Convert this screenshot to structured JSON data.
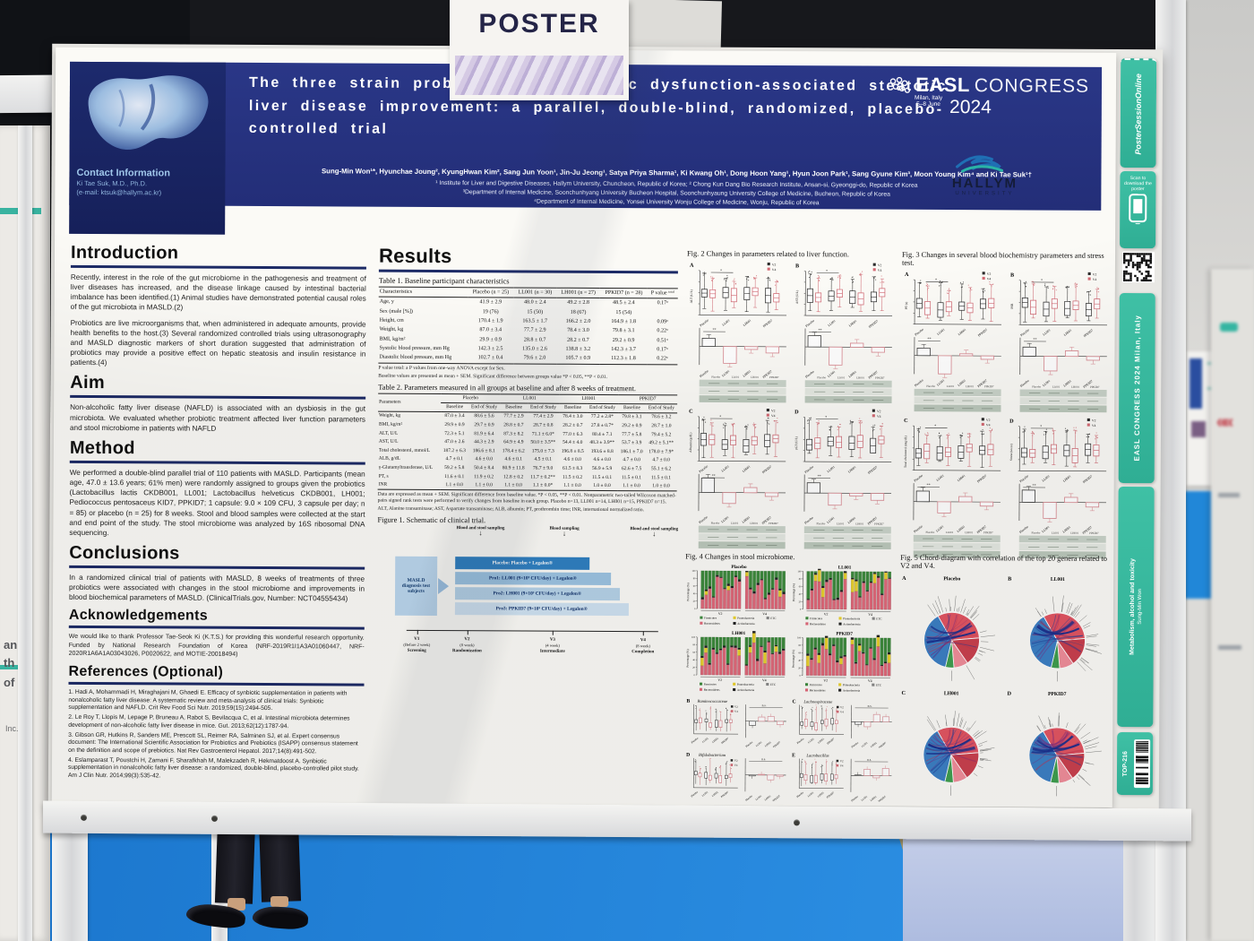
{
  "scene": {
    "poster_sign_label": "POSTER",
    "neighbor_fragments": [
      "an",
      "th",
      "of",
      "Inc."
    ]
  },
  "strip": {
    "pso": "PosterSessionOnline",
    "scan": "Scan to download the poster",
    "congress_vertical": "EASL CONGRESS 2024  Milan, Italy",
    "category": "Metabolism, alcohol and toxicity",
    "presenter": "Sung-Min Won",
    "tag": "TOP-216"
  },
  "poster": {
    "header": {
      "title": "The three strain probiotics for metabolic dysfunction-associated steatotic liver disease improvement: a parallel, double-blind, randomized, placebo-controlled trial",
      "authors": "Sung-Min Won¹*, Hyunchae Joung², KyungHwan Kim², Sang Jun Yoon¹, Jin-Ju Jeong¹, Satya Priya Sharma¹, Ki Kwang Oh¹, Dong Hoon Yang¹, Hyun Joon Park¹, Sang Gyune Kim³, Moon Young Kim⁴ and Ki Tae Suk¹†",
      "affil1": "¹ Institute for Liver and Digestive Diseases, Hallym University, Chuncheon, Republic of Korea; ² Chong Kun Dang Bio Research Institute, Ansan-si, Gyeonggi-do, Republic of Korea",
      "affil2": "³Department of Internal Medicine, Soonchunhyang University Bucheon Hospital, Soonchunhyaung University College of Medicine, Bucheon, Republic of Korea",
      "affil3": "⁴Department of Internal Medicine, Yonsei University Wonju College of Medicine, Wonju, Republic of Korea",
      "congress": {
        "name": "EASL",
        "word": "CONGRESS",
        "year": "2024",
        "city": "Milan, Italy",
        "dates": "5–8 June"
      },
      "university": {
        "line1": "HALLYM",
        "line2": "UNIVERSITY"
      },
      "contact": {
        "heading": "Contact Information",
        "name": "Ki Tae Suk, M.D., Ph.D.",
        "email": "(e-mail: ktsuk@hallym.ac.kr)"
      }
    },
    "sections": {
      "intro": {
        "heading": "Introduction",
        "p1": "Recently, interest in the role of the gut microbiome in the pathogenesis and treatment of liver diseases has increased, and the disease linkage caused by intestinal bacterial imbalance has been identified.(1) Animal studies have demonstrated potential causal roles of the gut microbiota in MASLD.(2)",
        "p2": "Probiotics are live microorganisms that, when administered in adequate amounts, provide health benefits to the host.(3) Several randomized controlled trials using ultrasonography and MASLD diagnostic markers of short duration suggested that administration of probiotics may provide a positive effect on hepatic steatosis and insulin resistance in patients.(4)"
      },
      "aim": {
        "heading": "Aim",
        "text": "Non-alcoholic fatty liver disease (NAFLD) is associated with an dysbiosis in the gut microbiota. We evaluated whether probiotic treatment affected liver function parameters and stool microbiome in patients with NAFLD"
      },
      "method": {
        "heading": "Method",
        "text": "We performed a double-blind parallel trial of 110 patients with MASLD. Participants (mean age, 47.0 ± 13.6 years; 61% men) were randomly assigned to groups given the probiotics (Lactobacillus lactis CKDB001, LL001; Lactobacillus helveticus CKDB001, LH001; Pediococcus pentosaceus KID7, PPKID7; 1 capsule: 9.0 × 109 CFU, 3 capsule per day; n = 85) or placebo (n = 25) for 8 weeks. Stool and blood samples were collected at the start and end point of the study. The stool microbiome was analyzed by 16S ribosomal DNA sequencing."
      },
      "conclusions": {
        "heading": "Conclusions",
        "text": "In a randomized clinical trial of patients with MASLD, 8 weeks of treatments of three probiotics were associated with changes in the stool microbiome and improvements in blood biochemical parameters of MASLD. (ClinicalTrials.gov, Number: NCT04555434)"
      },
      "ack": {
        "heading": "Acknowledgements",
        "text": "We would like to thank Professor Tae-Seok Ki (K.T.S.) for providing this wonderful research opportunity. Funded by National Research Foundation of Korea (NRF-2019R1I1A3A01060447, NRF-2020R1A6A1A03043026, P0020622, and MOTIE-20018494)"
      },
      "refs": {
        "heading": "References (Optional)",
        "items": [
          "1.  Hadi A, Mohammadi H, Miraghajani M, Ghaedi E. Efficacy of synbiotic supplementation in patients with nonalcoholic fatty liver disease: A systematic review and meta-analysis of clinical trials: Synbiotic supplementation and NAFLD. Crit Rev Food Sci Nutr. 2019;59(15):2494-505.",
          "2.  Le Roy T, Llopis M, Lepage P, Bruneau A, Rabot S, Bevilacqua C, et al. Intestinal microbiota determines development of non-alcoholic fatty liver disease in mice. Gut. 2013;62(12):1787-94.",
          "3.  Gibson GR, Hutkins R, Sanders ME, Prescott SL, Reimer RA, Salminen SJ, et al. Expert consensus document: The International Scientific Association for Probiotics and Prebiotics (ISAPP) consensus statement on the definition and scope of prebiotics. Nat Rev Gastroenterol Hepatol. 2017;14(8):491-502.",
          "4.  Eslamparast T, Poustchi H, Zamani F, Sharafkhah M, Malekzadeh R, Hekmatdoost A. Synbiotic supplementation in nonalcoholic fatty liver disease: a randomized, double-blind, placebo-controlled pilot study. Am J Clin Nutr. 2014;99(3):535-42."
        ]
      }
    },
    "results": {
      "heading": "Results",
      "table1": {
        "caption": "Table 1. Baseline participant characteristics",
        "columns": [
          "Characteristics",
          "Placebo (n = 25)",
          "LL001 (n = 30)",
          "LH001 (n = 27)",
          "PPKID7 (n = 28)",
          "P value ᵗᵒᵗᵃˡ"
        ],
        "rows": [
          [
            "Age, y",
            "41.9 ± 2.9",
            "48.0 ± 2.4",
            "49.2 ± 2.8",
            "48.5 ± 2.4",
            "0.17ᵃ"
          ],
          [
            "Sex (male [%])",
            "19 (76)",
            "15 (50)",
            "18 (67)",
            "15 (54)",
            ""
          ],
          [
            "Height, cm",
            "170.4 ± 1.9",
            "163.5 ± 1.7",
            "166.2 ± 2.0",
            "164.9 ± 1.8",
            "0.09ᵃ"
          ],
          [
            "Weight, kg",
            "87.0 ± 3.4",
            "77.7 ± 2.9",
            "78.4 ± 3.0",
            "79.8 ± 3.1",
            "0.22ᵃ"
          ],
          [
            "BMI, kg/m²",
            "29.9 ± 0.9",
            "28.8 ± 0.7",
            "28.2 ± 0.7",
            "29.2 ± 0.9",
            "0.51ᵃ"
          ],
          [
            "Systolic blood pressure, mm Hg",
            "142.3 ± 2.5",
            "135.0 ± 2.6",
            "138.8 ± 3.2",
            "142.3 ± 3.7",
            "0.17ᵃ"
          ],
          [
            "Diastolic blood pressure, mm Hg",
            "102.7 ± 0.4",
            "79.6 ± 2.0",
            "105.7 ± 0.9",
            "112.3 ± 1.8",
            "0.22ᵃ"
          ]
        ],
        "footnotes": [
          "P value total: a P values from one-way ANOVA except for Sex.",
          "Baseline values are presented as mean + SEM. Significant difference between groups value *P < 0.05, **P < 0.01."
        ]
      },
      "table2": {
        "caption": "Table 2. Parameters measured in all groups at baseline and after 8 weeks of treatment.",
        "param_header": "Parameters",
        "groups": [
          "Placebo",
          "LL001",
          "LH001",
          "PPKID7"
        ],
        "subcols": [
          "Baseline",
          "End of Study"
        ],
        "rows": [
          [
            "Weight, kg",
            "87.0 ± 3.4",
            "88.6 ± 5.6",
            "77.7 ± 2.9",
            "77.4 ± 2.9",
            "78.4 ± 3.0",
            "77.2 ± 2.8*",
            "79.8 ± 3.1",
            "78.6 ± 3.2"
          ],
          [
            "BMI, kg/m²",
            "29.9 ± 0.9",
            "29.7 ± 0.9",
            "28.8 ± 0.7",
            "28.7 ± 0.8",
            "28.2 ± 0.7",
            "27.8 ± 0.7*",
            "29.2 ± 0.9",
            "28.7 ± 1.0"
          ],
          [
            "ALT, U/L",
            "72.3 ± 5.1",
            "81.9 ± 6.4",
            "87.3 ± 8.2",
            "71.1 ± 6.0*",
            "77.0 ± 6.3",
            "80.4 ± 7.1",
            "77.7 ± 5.8",
            "79.4 ± 5.2"
          ],
          [
            "AST, U/L",
            "47.0 ± 2.6",
            "44.3 ± 2.9",
            "64.9 ± 4.9",
            "50.0 ± 3.5**",
            "54.4 ± 4.0",
            "48.3 ± 3.9**",
            "53.7 ± 3.9",
            "49.2 ± 5.1**"
          ],
          [
            "Total cholesterol, mmol/L",
            "187.2 ± 6.3",
            "186.6 ± 8.1",
            "178.4 ± 6.2",
            "175.0 ± 7.3",
            "196.8 ± 8.5",
            "193.6 ± 8.8",
            "186.1 ± 7.0",
            "178.0 ± 7.9*"
          ],
          [
            "ALB, g/dL",
            "4.7 ± 0.1",
            "4.6 ± 0.0",
            "4.6 ± 0.1",
            "4.5 ± 0.1",
            "4.6 ± 0.0",
            "4.6 ± 0.0",
            "4.7 ± 0.0",
            "4.7 ± 0.0"
          ],
          [
            "γ-Glutamyltransferase, U/L",
            "59.2 ± 5.8",
            "50.4 ± 8.4",
            "80.9 ± 11.8",
            "76.7 ± 9.0",
            "61.5 ± 8.3",
            "56.9 ± 5.9",
            "62.6 ± 7.5",
            "55.1 ± 6.2"
          ],
          [
            "PT, s",
            "11.6 ± 0.1",
            "11.9 ± 0.2",
            "12.8 ± 0.2",
            "11.7 ± 0.2**",
            "11.5 ± 0.2",
            "11.5 ± 0.1",
            "11.5 ± 0.1",
            "11.5 ± 0.1"
          ],
          [
            "INR",
            "1.1 ± 0.0",
            "1.1 ± 0.0",
            "1.1 ± 0.0",
            "1.1 ± 0.0*",
            "1.1 ± 0.0",
            "1.0 ± 0.0",
            "1.1 ± 0.0",
            "1.0 ± 0.0"
          ]
        ],
        "footnotes": [
          "Data are expressed as mean + SEM. Significant difference from baseline value. *P < 0.05, **P < 0.01. Nonparametric two-tailed Wilcoxon matched-pairs signed rank tests were performed to verify changes from baseline in each group. Placebo n=13, LL001 n=14, LH001 n=15, PPKID7 n=15.",
          "ALT, Alanine transaminase; AST, Aspartate transaminase; ALB, albumin; PT, prothrombin time; INR, international normalized ratio."
        ]
      },
      "figure1": {
        "caption": "Figure 1. Schematic of clinical trial.",
        "samplings": [
          "Blood and stool sampling",
          "Blood sampling",
          "Blood and stool sampling"
        ],
        "subject_box": "MASLD diagnosis test subjects",
        "arms": [
          "Placebo: Placebo + Legalon®",
          "Pro1: LL001 (9×10⁹ CFU/day) + Legalon®",
          "Pro2: LH001 (9×10⁹ CFU/day) + Legalon®",
          "Pro3: PPKID7 (9×10⁹ CFU/day) + Legalon®"
        ],
        "timeline": [
          {
            "v": "V1",
            "t": "(Before 2 week)",
            "l": "Screening"
          },
          {
            "v": "V2",
            "t": "(0 week)",
            "l": "Randomization"
          },
          {
            "v": "V3",
            "t": "(4 week)",
            "l": "Intermediate"
          },
          {
            "v": "V4",
            "t": "(8 week)",
            "l": "Completion"
          }
        ]
      }
    },
    "figures": {
      "groups": [
        "Placebo",
        "LL001",
        "LH001",
        "PPKID7"
      ],
      "visit_legend": [
        "V2",
        "V4"
      ],
      "fig2": {
        "caption": "Fig. 2 Changes in parameters related to liver function.",
        "panels": [
          {
            "letter": "A",
            "ylabel": "ALT (U/L)"
          },
          {
            "letter": "B",
            "ylabel": "AST (U/L)"
          },
          {
            "letter": "C",
            "ylabel": "Albumin (g/dL)"
          },
          {
            "letter": "D",
            "ylabel": "γGT (U/L)"
          }
        ]
      },
      "fig3": {
        "caption": "Fig. 3 Changes in several blood biochemistry parameters and stress test.",
        "panels": [
          {
            "letter": "A",
            "ylabel": "PT (s)"
          },
          {
            "letter": "B",
            "ylabel": "INR"
          },
          {
            "letter": "C",
            "ylabel": "Total cholesterol (mg/dL)"
          },
          {
            "letter": "D",
            "ylabel": "Stress (score)"
          }
        ]
      },
      "fig4": {
        "caption": "Fig. 4 Changes in stool microbiome.",
        "charts": [
          "Placebo",
          "LL001",
          "LH001",
          "PPKID7"
        ],
        "legend": [
          "Firmicutes",
          "Proteobacteria",
          "ETC",
          "Bacteroidetes",
          "Actinobacteria"
        ],
        "ylabel": "Percentage (%)",
        "genus_panels": [
          {
            "letter": "B",
            "title": "Ruminococcaceae"
          },
          {
            "letter": "C",
            "title": "Lachnospiraceae"
          },
          {
            "letter": "D",
            "title": "Bifidobacterium"
          },
          {
            "letter": "E",
            "title": "Lactobacillus"
          }
        ]
      },
      "fig5": {
        "caption": "Fig. 5 Chord-diagram with correlation of the top 20 genera related to V2 and V4.",
        "panels": [
          {
            "letter": "A",
            "title": "Placebo"
          },
          {
            "letter": "B",
            "title": "LL001"
          },
          {
            "letter": "C",
            "title": "LH001"
          },
          {
            "letter": "D",
            "title": "PPKID7"
          }
        ]
      }
    }
  }
}
